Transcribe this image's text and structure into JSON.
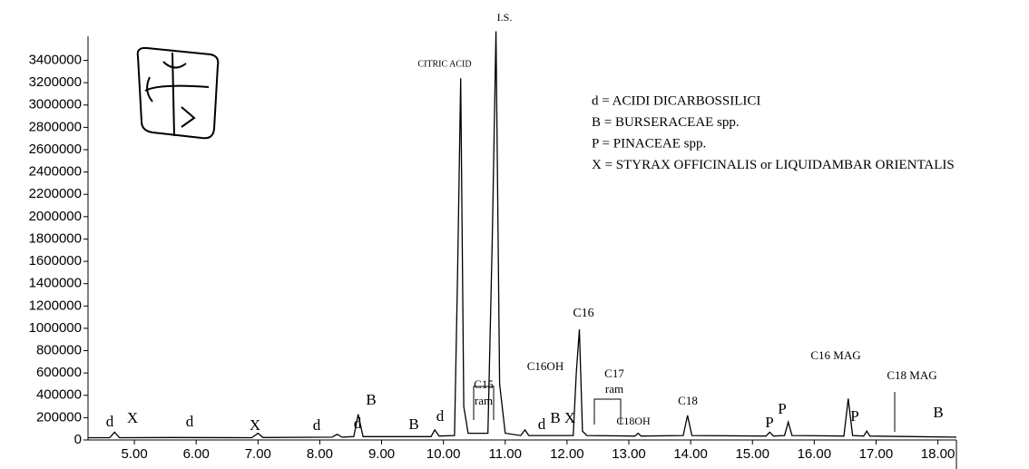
{
  "chart_data": {
    "type": "line",
    "series": [
      {
        "color": "#000000",
        "x": [
          4.25,
          4.6,
          4.68,
          4.76,
          5.6,
          6.9,
          7.0,
          7.08,
          8.2,
          8.28,
          8.36,
          8.55,
          8.62,
          8.7,
          9.8,
          9.86,
          9.93,
          10.18,
          10.23,
          10.28,
          10.33,
          10.4,
          10.72,
          10.79,
          10.85,
          10.91,
          11.0,
          11.25,
          11.32,
          11.38,
          12.1,
          12.15,
          12.2,
          12.25,
          12.32,
          13.1,
          13.15,
          13.2,
          13.88,
          13.95,
          14.02,
          15.22,
          15.28,
          15.34,
          15.52,
          15.58,
          15.64,
          16.48,
          16.55,
          16.62,
          16.8,
          16.85,
          16.9,
          18.3
        ],
        "values": [
          20000,
          20000,
          70000,
          20000,
          22000,
          20000,
          60000,
          22000,
          25000,
          50000,
          25000,
          30000,
          230000,
          30000,
          30000,
          90000,
          35000,
          40000,
          1500000,
          3240000,
          300000,
          60000,
          60000,
          1800000,
          3660000,
          500000,
          60000,
          40000,
          90000,
          40000,
          40000,
          600000,
          990000,
          80000,
          40000,
          35000,
          60000,
          35000,
          40000,
          220000,
          40000,
          35000,
          70000,
          35000,
          40000,
          160000,
          40000,
          35000,
          370000,
          40000,
          35000,
          80000,
          35000,
          25000
        ]
      }
    ],
    "xlim": [
      4.25,
      18.3
    ],
    "xticks": [
      {
        "value": 5,
        "label": "5.00"
      },
      {
        "value": 6,
        "label": "6.00"
      },
      {
        "value": 7,
        "label": "7.00"
      },
      {
        "value": 8,
        "label": "8.00"
      },
      {
        "value": 9,
        "label": "9.00"
      },
      {
        "value": 10,
        "label": "10.00"
      },
      {
        "value": 11,
        "label": "11.00"
      },
      {
        "value": 12,
        "label": "12.00"
      },
      {
        "value": 13,
        "label": "13.00"
      },
      {
        "value": 14,
        "label": "14.00"
      },
      {
        "value": 15,
        "label": "15.00"
      },
      {
        "value": 16,
        "label": "16.00"
      },
      {
        "value": 17,
        "label": "17.00"
      },
      {
        "value": 18,
        "label": "18.00"
      }
    ],
    "ylim": [
      0,
      3900000
    ],
    "yticks": [
      0,
      200000,
      400000,
      600000,
      800000,
      1000000,
      1200000,
      1400000,
      1600000,
      1800000,
      2000000,
      2200000,
      2400000,
      2600000,
      2800000,
      3000000,
      3200000,
      3400000
    ],
    "annotations": [
      "d",
      "X",
      "d",
      "X",
      "d",
      "d",
      "B",
      "B",
      "d",
      "CITRIC ACID",
      "I.S.",
      "C15",
      "ram",
      "C16OH",
      "d",
      "B",
      "X",
      "C16",
      "C17",
      "ram",
      "C18OH",
      "C18",
      "P",
      "P",
      "C16 MAG",
      "P",
      "C18 MAG",
      "B"
    ],
    "legend": [
      "d = ACIDI DICARBOSSILICI",
      "B = BURSERACEAE spp.",
      "P = PINACEAE spp.",
      "X = STYRAX OFFICINALIS or LIQUIDAMBAR ORIENTALIS"
    ]
  }
}
